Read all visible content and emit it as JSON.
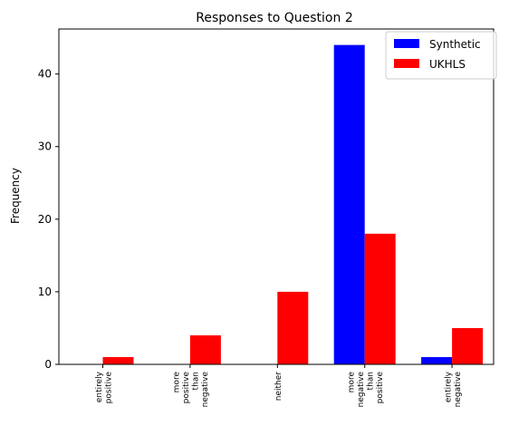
{
  "chart_data": {
    "type": "bar",
    "title": "Responses to Question 2",
    "xlabel": "",
    "ylabel": "Frequency",
    "ylim": [
      0,
      46.2
    ],
    "yticks": [
      0,
      10,
      20,
      30,
      40
    ],
    "grid": false,
    "legend_position": "top-right",
    "categories": [
      [
        "entirely",
        "positive"
      ],
      [
        "more",
        "positive",
        "than",
        "negative"
      ],
      [
        "neither"
      ],
      [
        "more",
        "negative",
        "than",
        "positive"
      ],
      [
        "entirely",
        "negative"
      ]
    ],
    "series": [
      {
        "name": "Synthetic",
        "color": "#0000ff",
        "values": [
          0,
          0,
          0,
          44,
          1
        ]
      },
      {
        "name": "UKHLS",
        "color": "#ff0000",
        "values": [
          1,
          4,
          10,
          18,
          5
        ]
      }
    ]
  }
}
